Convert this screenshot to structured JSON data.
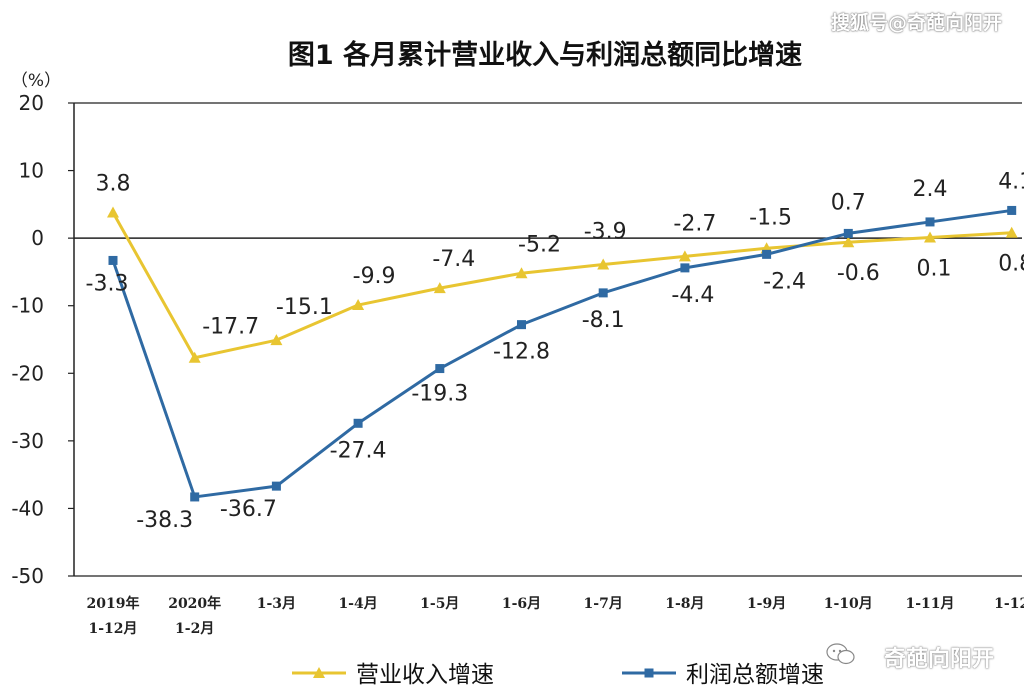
{
  "watermark_top": "搜狐号@奇葩向阳开",
  "watermark_bottom": "奇葩向阳开",
  "colors": {
    "revenue": "#e8c531",
    "profit": "#2f6aa3",
    "axis": "#222222",
    "text": "#222222"
  },
  "chart_data": {
    "type": "line",
    "title": "图1  各月累计营业收入与利润总额同比增速",
    "ylabel": "（%）",
    "ylim": [
      -50,
      20
    ],
    "yticks": [
      20,
      10,
      0,
      -10,
      -20,
      -30,
      -40,
      -50
    ],
    "categories": [
      [
        "2019年",
        "1-12月"
      ],
      [
        "2020年",
        "1-2月"
      ],
      [
        "1-3月"
      ],
      [
        "1-4月"
      ],
      [
        "1-5月"
      ],
      [
        "1-6月"
      ],
      [
        "1-7月"
      ],
      [
        "1-8月"
      ],
      [
        "1-9月"
      ],
      [
        "1-10月"
      ],
      [
        "1-11月"
      ],
      [
        "1-12"
      ]
    ],
    "series": [
      {
        "name": "营业收入增速",
        "values": [
          3.8,
          -17.7,
          -15.1,
          -9.9,
          -7.4,
          -5.2,
          -3.9,
          -2.7,
          -1.5,
          -0.6,
          0.1,
          0.8
        ],
        "labels": [
          "3.8",
          "-17.7",
          "-15.1",
          "-9.9",
          "-7.4",
          "-5.2",
          "-3.9",
          "-2.7",
          "-1.5",
          "-0.6",
          "0.1",
          "0.8"
        ]
      },
      {
        "name": "利润总额增速",
        "values": [
          -3.3,
          -38.3,
          -36.7,
          -27.4,
          -19.3,
          -12.8,
          -8.1,
          -4.4,
          -2.4,
          0.7,
          2.4,
          4.1
        ],
        "labels": [
          "-3.3",
          "-38.3",
          "-36.7",
          "-27.4",
          "-19.3",
          "-12.8",
          "-8.1",
          "-4.4",
          "-2.4",
          "0.7",
          "2.4",
          "4.1"
        ]
      }
    ],
    "legend": "bottom"
  }
}
